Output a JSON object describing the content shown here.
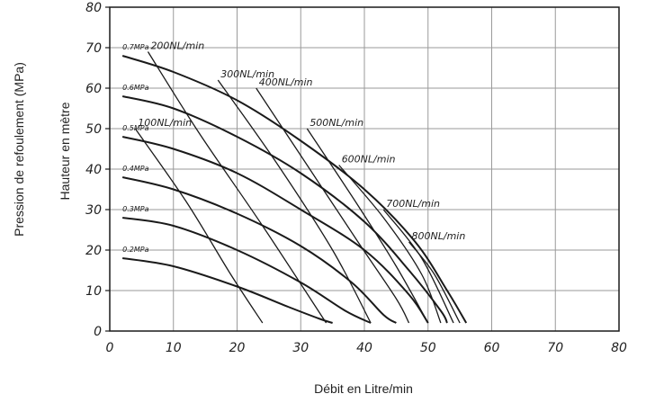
{
  "chart_data": {
    "type": "line",
    "xlabel": "Débit en Litre/min",
    "ylabel": "Hauteur en mètre",
    "ylabel_secondary": "Pression de refoulement (MPa)",
    "xlim": [
      0,
      80
    ],
    "ylim": [
      0,
      80
    ],
    "x_ticks": [
      "0",
      "10",
      "20",
      "30",
      "40",
      "50",
      "60",
      "70",
      "80"
    ],
    "y_ticks": [
      "0",
      "10",
      "20",
      "30",
      "40",
      "50",
      "60",
      "70",
      "80"
    ],
    "grid": true,
    "series_pressure": [
      {
        "name": "0.7MPa",
        "points": [
          [
            2,
            68
          ],
          [
            10,
            64
          ],
          [
            20,
            57
          ],
          [
            30,
            47
          ],
          [
            40,
            35
          ],
          [
            48,
            22
          ],
          [
            53,
            10
          ],
          [
            56,
            2
          ]
        ]
      },
      {
        "name": "0.6MPa",
        "points": [
          [
            2,
            58
          ],
          [
            10,
            55
          ],
          [
            20,
            48
          ],
          [
            30,
            39
          ],
          [
            40,
            27
          ],
          [
            47,
            15
          ],
          [
            52,
            5
          ],
          [
            53,
            2
          ]
        ]
      },
      {
        "name": "0.5MPa",
        "points": [
          [
            2,
            48
          ],
          [
            10,
            45
          ],
          [
            20,
            39
          ],
          [
            30,
            30
          ],
          [
            40,
            20
          ],
          [
            47,
            9
          ],
          [
            50,
            2
          ]
        ]
      },
      {
        "name": "0.4MPa",
        "points": [
          [
            2,
            38
          ],
          [
            10,
            35
          ],
          [
            20,
            29
          ],
          [
            30,
            21
          ],
          [
            38,
            12
          ],
          [
            43,
            4
          ],
          [
            45,
            2
          ]
        ]
      },
      {
        "name": "0.3MPa",
        "points": [
          [
            2,
            28
          ],
          [
            10,
            26
          ],
          [
            20,
            20
          ],
          [
            30,
            12
          ],
          [
            37,
            5
          ],
          [
            41,
            2
          ]
        ]
      },
      {
        "name": "0.2MPa",
        "points": [
          [
            2,
            18
          ],
          [
            10,
            16
          ],
          [
            20,
            11
          ],
          [
            28,
            6
          ],
          [
            33,
            3
          ],
          [
            35,
            2
          ]
        ]
      }
    ],
    "series_flow": [
      {
        "name": "100NL/min",
        "points": [
          [
            4,
            50
          ],
          [
            12,
            32
          ],
          [
            19,
            14
          ],
          [
            24,
            2
          ]
        ]
      },
      {
        "name": "200NL/min",
        "points": [
          [
            6,
            69
          ],
          [
            14,
            49
          ],
          [
            24,
            26
          ],
          [
            34,
            2
          ]
        ]
      },
      {
        "name": "300NL/min",
        "points": [
          [
            17,
            62
          ],
          [
            26,
            42
          ],
          [
            35,
            20
          ],
          [
            41,
            2
          ]
        ]
      },
      {
        "name": "400NL/min",
        "points": [
          [
            23,
            60
          ],
          [
            31,
            41
          ],
          [
            39,
            22
          ],
          [
            45,
            8
          ],
          [
            47,
            2
          ]
        ]
      },
      {
        "name": "500NL/min",
        "points": [
          [
            31,
            50
          ],
          [
            39,
            31
          ],
          [
            45,
            16
          ],
          [
            50,
            2
          ]
        ]
      },
      {
        "name": "600NL/min",
        "points": [
          [
            36,
            41
          ],
          [
            43,
            28
          ],
          [
            49,
            14
          ],
          [
            52,
            2
          ]
        ]
      },
      {
        "name": "700NL/min",
        "points": [
          [
            43,
            30
          ],
          [
            49,
            18
          ],
          [
            54,
            2
          ]
        ]
      },
      {
        "name": "800NL/min",
        "points": [
          [
            47,
            22
          ],
          [
            51,
            14
          ],
          [
            55,
            2
          ]
        ]
      }
    ]
  }
}
